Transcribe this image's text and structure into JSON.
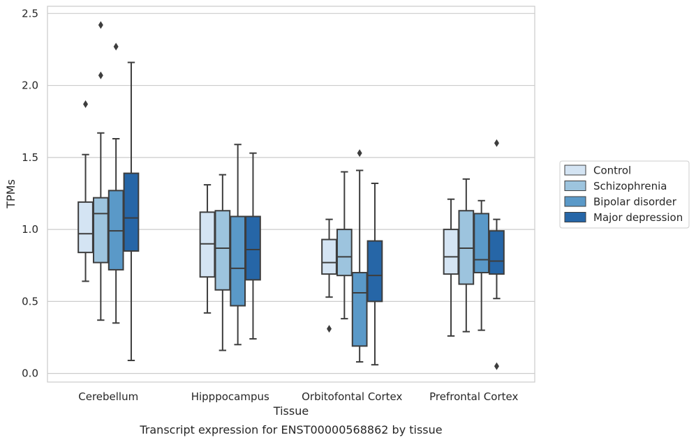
{
  "chart_data": {
    "type": "box",
    "xlabel": "Tissue",
    "ylabel": "TPMs",
    "caption": "Transcript expression for ENST00000568862 by tissue",
    "ylim": [
      -0.06,
      2.55
    ],
    "yticks": [
      "0.0",
      "0.5",
      "1.0",
      "1.5",
      "2.0",
      "2.5"
    ],
    "ytick_values": [
      0.0,
      0.5,
      1.0,
      1.5,
      2.0,
      2.5
    ],
    "grid": true,
    "legend_position": "right",
    "categories": [
      "Cerebellum",
      "Hipppocampus",
      "Orbitofontal Cortex",
      "Prefrontal Cortex"
    ],
    "series": [
      {
        "name": "Control",
        "color": "#d4e4f3",
        "boxes": [
          {
            "low": 0.64,
            "q1": 0.84,
            "median": 0.97,
            "q3": 1.19,
            "high": 1.52,
            "outliers": [
              1.87
            ]
          },
          {
            "low": 0.42,
            "q1": 0.67,
            "median": 0.9,
            "q3": 1.12,
            "high": 1.31,
            "outliers": []
          },
          {
            "low": 0.53,
            "q1": 0.69,
            "median": 0.77,
            "q3": 0.93,
            "high": 1.07,
            "outliers": [
              0.31
            ]
          },
          {
            "low": 0.26,
            "q1": 0.69,
            "median": 0.81,
            "q3": 1.0,
            "high": 1.21,
            "outliers": []
          }
        ]
      },
      {
        "name": "Schizophrenia",
        "color": "#9dc4de",
        "boxes": [
          {
            "low": 0.37,
            "q1": 0.77,
            "median": 1.11,
            "q3": 1.22,
            "high": 1.67,
            "outliers": [
              2.42,
              2.07
            ]
          },
          {
            "low": 0.16,
            "q1": 0.58,
            "median": 0.87,
            "q3": 1.13,
            "high": 1.38,
            "outliers": []
          },
          {
            "low": 0.38,
            "q1": 0.68,
            "median": 0.81,
            "q3": 1.0,
            "high": 1.4,
            "outliers": []
          },
          {
            "low": 0.29,
            "q1": 0.62,
            "median": 0.87,
            "q3": 1.13,
            "high": 1.35,
            "outliers": []
          }
        ]
      },
      {
        "name": "Bipolar disorder",
        "color": "#5a99c8",
        "boxes": [
          {
            "low": 0.35,
            "q1": 0.72,
            "median": 0.99,
            "q3": 1.27,
            "high": 1.63,
            "outliers": [
              2.27
            ]
          },
          {
            "low": 0.2,
            "q1": 0.47,
            "median": 0.73,
            "q3": 1.09,
            "high": 1.59,
            "outliers": []
          },
          {
            "low": 0.08,
            "q1": 0.19,
            "median": 0.56,
            "q3": 0.7,
            "high": 1.41,
            "outliers": [
              1.53
            ]
          },
          {
            "low": 0.3,
            "q1": 0.7,
            "median": 0.79,
            "q3": 1.11,
            "high": 1.2,
            "outliers": []
          }
        ]
      },
      {
        "name": "Major depression",
        "color": "#2666a7",
        "boxes": [
          {
            "low": 0.09,
            "q1": 0.85,
            "median": 1.08,
            "q3": 1.39,
            "high": 2.16,
            "outliers": []
          },
          {
            "low": 0.24,
            "q1": 0.65,
            "median": 0.86,
            "q3": 1.09,
            "high": 1.53,
            "outliers": []
          },
          {
            "low": 0.06,
            "q1": 0.5,
            "median": 0.68,
            "q3": 0.92,
            "high": 1.32,
            "outliers": []
          },
          {
            "low": 0.52,
            "q1": 0.69,
            "median": 0.78,
            "q3": 0.99,
            "high": 1.07,
            "outliers": [
              1.6,
              0.05
            ]
          }
        ]
      }
    ]
  }
}
